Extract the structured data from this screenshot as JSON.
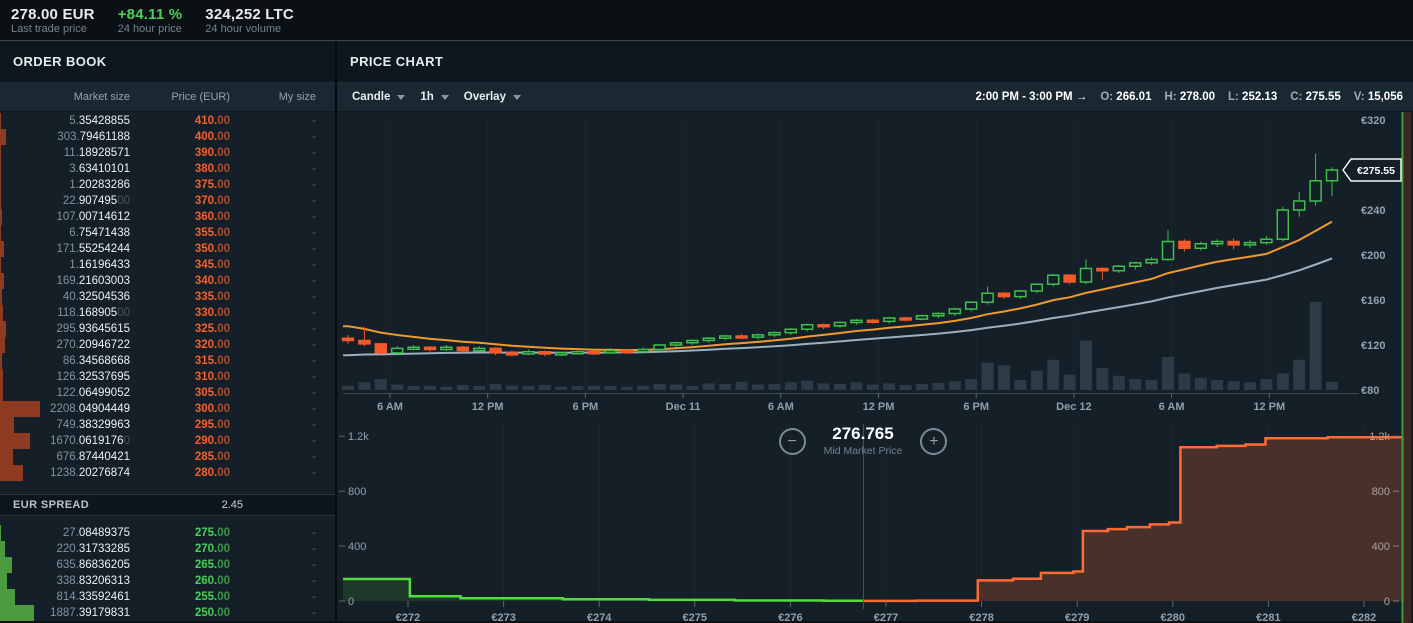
{
  "top_bar": {
    "stats": [
      {
        "value": "278.00 EUR",
        "label": "Last trade price",
        "color": "#e8edf0"
      },
      {
        "value": "+84.11 %",
        "label": "24 hour price",
        "color": "#4fd05a"
      },
      {
        "value": "324,252 LTC",
        "label": "24 hour volume",
        "color": "#e8edf0"
      }
    ]
  },
  "order_book": {
    "title": "ORDER BOOK",
    "columns": [
      "Market size",
      "Price (EUR)",
      "My size"
    ],
    "asks": [
      {
        "size": "5.35428855",
        "price": "410.00",
        "my_size": "-",
        "bar": 1
      },
      {
        "size": "303.79461188",
        "price": "400.00",
        "my_size": "-",
        "bar": 6
      },
      {
        "size": "11.18928571",
        "price": "390.00",
        "my_size": "-",
        "bar": 1
      },
      {
        "size": "3.63410101",
        "price": "380.00",
        "my_size": "-",
        "bar": 1
      },
      {
        "size": "1.20283286",
        "price": "375.00",
        "my_size": "-",
        "bar": 1
      },
      {
        "size": "22.90749500",
        "price": "370.00",
        "my_size": "-",
        "bar": 1
      },
      {
        "size": "107.00714612",
        "price": "360.00",
        "my_size": "-",
        "bar": 2
      },
      {
        "size": "6.75471438",
        "price": "355.00",
        "my_size": "-",
        "bar": 1
      },
      {
        "size": "171.55254244",
        "price": "350.00",
        "my_size": "-",
        "bar": 4
      },
      {
        "size": "1.16196433",
        "price": "345.00",
        "my_size": "-",
        "bar": 1
      },
      {
        "size": "169.21603003",
        "price": "340.00",
        "my_size": "-",
        "bar": 4
      },
      {
        "size": "40.32504536",
        "price": "335.00",
        "my_size": "-",
        "bar": 2
      },
      {
        "size": "118.16890500",
        "price": "330.00",
        "my_size": "-",
        "bar": 3
      },
      {
        "size": "295.93645615",
        "price": "325.00",
        "my_size": "-",
        "bar": 6
      },
      {
        "size": "270.20946722",
        "price": "320.00",
        "my_size": "-",
        "bar": 5
      },
      {
        "size": "86.34568668",
        "price": "315.00",
        "my_size": "-",
        "bar": 2
      },
      {
        "size": "126.32537695",
        "price": "310.00",
        "my_size": "-",
        "bar": 3
      },
      {
        "size": "122.06499052",
        "price": "305.00",
        "my_size": "-",
        "bar": 3
      },
      {
        "size": "2208.04904449",
        "price": "300.00",
        "my_size": "-",
        "bar": 40
      },
      {
        "size": "749.38329963",
        "price": "295.00",
        "my_size": "-",
        "bar": 14
      },
      {
        "size": "1670.06191760",
        "price": "290.00",
        "my_size": "-",
        "bar": 30
      },
      {
        "size": "676.87440421",
        "price": "285.00",
        "my_size": "-",
        "bar": 13
      },
      {
        "size": "1238.20276874",
        "price": "280.00",
        "my_size": "-",
        "bar": 23
      }
    ],
    "spread": {
      "label": "EUR SPREAD",
      "value": "2.45"
    },
    "bids": [
      {
        "size": "27.08489375",
        "price": "275.00",
        "my_size": "-",
        "bar": 1
      },
      {
        "size": "220.31733285",
        "price": "270.00",
        "my_size": "-",
        "bar": 5
      },
      {
        "size": "635.86836205",
        "price": "265.00",
        "my_size": "-",
        "bar": 12
      },
      {
        "size": "338.83206313",
        "price": "260.00",
        "my_size": "-",
        "bar": 7
      },
      {
        "size": "814.33592461",
        "price": "255.00",
        "my_size": "-",
        "bar": 15
      },
      {
        "size": "1887.39179831",
        "price": "250.00",
        "my_size": "-",
        "bar": 34
      }
    ]
  },
  "price_chart": {
    "title": "PRICE CHART",
    "toolbar": {
      "chart_type": "Candle",
      "interval": "1h",
      "overlay": "Overlay"
    },
    "ohlc": {
      "range": "2:00 PM - 3:00 PM  →",
      "pairs": [
        [
          "O:",
          "266.01"
        ],
        [
          "H:",
          "278.00"
        ],
        [
          "L:",
          "252.13"
        ],
        [
          "C:",
          "275.55"
        ],
        [
          "V:",
          "15,056"
        ]
      ]
    },
    "price_tag": "€275.55"
  },
  "depth_chart": {
    "zoom_out": "−",
    "mid_price": "276.765",
    "zoom_in": "+",
    "mid_label": "Mid Market Price"
  },
  "chart_data": {
    "type": "candlestick+volume+depth",
    "interval": "1h",
    "price_axis": {
      "ticks": [
        "€320",
        "€240",
        "€200",
        "€160",
        "€120",
        "€80"
      ],
      "values": [
        320,
        240,
        200,
        160,
        120,
        80
      ],
      "range": [
        80,
        320
      ]
    },
    "time_ticks": [
      "6 AM",
      "12 PM",
      "6 PM",
      "Dec 11",
      "6 AM",
      "12 PM",
      "6 PM",
      "Dec 12",
      "6 AM",
      "12 PM"
    ],
    "last_price": 275.55,
    "candles_ohlcv": [
      [
        126,
        129,
        121,
        124,
        8
      ],
      [
        124,
        136,
        119,
        121,
        14
      ],
      [
        121,
        122,
        111,
        113,
        20
      ],
      [
        113,
        119,
        111,
        117,
        10
      ],
      [
        117,
        120,
        115,
        118,
        7
      ],
      [
        118,
        119,
        114,
        116,
        8
      ],
      [
        116,
        120,
        115,
        118,
        6
      ],
      [
        118,
        119,
        113,
        115,
        9
      ],
      [
        115,
        119,
        114,
        117,
        7
      ],
      [
        117,
        118,
        111,
        113,
        11
      ],
      [
        113,
        115,
        110,
        112,
        8
      ],
      [
        112,
        116,
        111,
        114,
        7
      ],
      [
        114,
        115,
        110,
        112,
        9
      ],
      [
        112,
        114,
        110,
        113,
        6
      ],
      [
        113,
        116,
        112,
        114,
        7
      ],
      [
        114,
        115,
        111,
        113,
        8
      ],
      [
        113,
        117,
        112,
        115,
        7
      ],
      [
        115,
        116,
        112,
        114,
        6
      ],
      [
        114,
        118,
        113,
        116,
        8
      ],
      [
        116,
        121,
        114,
        120,
        11
      ],
      [
        120,
        123,
        118,
        122,
        10
      ],
      [
        122,
        125,
        120,
        124,
        7
      ],
      [
        124,
        127,
        122,
        126,
        12
      ],
      [
        126,
        129,
        124,
        128,
        11
      ],
      [
        128,
        130,
        125,
        127,
        15
      ],
      [
        127,
        130,
        125,
        129,
        10
      ],
      [
        129,
        132,
        127,
        131,
        11
      ],
      [
        131,
        135,
        129,
        134,
        14
      ],
      [
        134,
        139,
        132,
        138,
        17
      ],
      [
        138,
        139,
        134,
        137,
        12
      ],
      [
        137,
        141,
        135,
        140,
        11
      ],
      [
        140,
        143,
        138,
        142,
        14
      ],
      [
        142,
        143,
        139,
        141,
        10
      ],
      [
        141,
        145,
        139,
        144,
        12
      ],
      [
        144,
        145,
        141,
        143,
        9
      ],
      [
        143,
        147,
        142,
        146,
        11
      ],
      [
        146,
        149,
        144,
        148,
        13
      ],
      [
        148,
        153,
        146,
        152,
        16
      ],
      [
        152,
        159,
        150,
        158,
        20
      ],
      [
        158,
        172,
        156,
        166,
        50
      ],
      [
        166,
        167,
        161,
        163,
        45
      ],
      [
        163,
        169,
        161,
        168,
        18
      ],
      [
        168,
        175,
        166,
        174,
        35
      ],
      [
        174,
        183,
        172,
        182,
        55
      ],
      [
        182,
        183,
        174,
        176,
        28
      ],
      [
        176,
        196,
        174,
        188,
        90
      ],
      [
        188,
        189,
        178,
        186,
        40
      ],
      [
        186,
        191,
        184,
        190,
        26
      ],
      [
        190,
        194,
        187,
        193,
        20
      ],
      [
        193,
        198,
        191,
        196,
        18
      ],
      [
        196,
        222,
        195,
        212,
        60
      ],
      [
        212,
        214,
        203,
        206,
        30
      ],
      [
        206,
        212,
        204,
        210,
        22
      ],
      [
        210,
        214,
        207,
        212,
        18
      ],
      [
        212,
        215,
        205,
        209,
        16
      ],
      [
        209,
        213,
        206,
        211,
        14
      ],
      [
        211,
        217,
        209,
        214,
        20
      ],
      [
        214,
        243,
        212,
        240,
        30
      ],
      [
        240,
        256,
        234,
        248,
        55
      ],
      [
        248,
        290,
        244,
        266,
        160
      ],
      [
        266.01,
        278,
        252.13,
        275.55,
        15.056
      ]
    ],
    "overlays": [
      {
        "name": "ema-fast",
        "period": 12,
        "seed": 139,
        "color": "#f0992d"
      },
      {
        "name": "ema-slow",
        "period": 30,
        "seed": 110,
        "color": "#9db0be"
      }
    ],
    "depth": {
      "x_ticks": [
        "€272",
        "€273",
        "€274",
        "€275",
        "€276",
        "€277",
        "€278",
        "€279",
        "€280",
        "€281",
        "€282"
      ],
      "y_ticks": [
        "1.2k",
        "800",
        "400",
        "0"
      ],
      "y_values": [
        1200,
        800,
        400,
        0
      ],
      "mid_price": 276.765,
      "bids_cumulative": [
        [
          271.32,
          160
        ],
        [
          272.02,
          160
        ],
        [
          272.02,
          34
        ],
        [
          272.55,
          34
        ],
        [
          272.55,
          20
        ],
        [
          273.62,
          20
        ],
        [
          273.62,
          13
        ],
        [
          274.52,
          13
        ],
        [
          274.52,
          8
        ],
        [
          275.42,
          8
        ],
        [
          275.42,
          4
        ],
        [
          276.35,
          4
        ],
        [
          276.35,
          2
        ],
        [
          276.765,
          2
        ]
      ],
      "asks_cumulative": [
        [
          276.765,
          1
        ],
        [
          277.32,
          1
        ],
        [
          277.32,
          3
        ],
        [
          277.96,
          3
        ],
        [
          277.96,
          150
        ],
        [
          278.33,
          150
        ],
        [
          278.33,
          162
        ],
        [
          278.62,
          162
        ],
        [
          278.62,
          205
        ],
        [
          278.96,
          205
        ],
        [
          278.96,
          215
        ],
        [
          279.06,
          215
        ],
        [
          279.06,
          510
        ],
        [
          279.32,
          510
        ],
        [
          279.32,
          524
        ],
        [
          279.52,
          524
        ],
        [
          279.52,
          538
        ],
        [
          279.76,
          538
        ],
        [
          279.76,
          558
        ],
        [
          279.96,
          558
        ],
        [
          279.96,
          572
        ],
        [
          280.08,
          572
        ],
        [
          280.08,
          1120
        ],
        [
          280.46,
          1120
        ],
        [
          280.46,
          1130
        ],
        [
          280.76,
          1130
        ],
        [
          280.76,
          1140
        ],
        [
          280.97,
          1140
        ],
        [
          280.97,
          1186
        ],
        [
          281.62,
          1186
        ],
        [
          281.62,
          1192
        ],
        [
          282.4,
          1192
        ]
      ]
    },
    "colors": {
      "candle_up": "#3fbf4c",
      "candle_down": "#f25a29",
      "volume": "#2c3b44",
      "ask_line": "#ff6a35",
      "ask_fill": "#49302a",
      "bid_line": "#52dd3c",
      "bid_fill": "rgba(82,221,60,0.14)",
      "axis_text": "#8fa0aa",
      "gauge_line": "#3f9e47",
      "gauge_fill": "#3b2823"
    }
  }
}
